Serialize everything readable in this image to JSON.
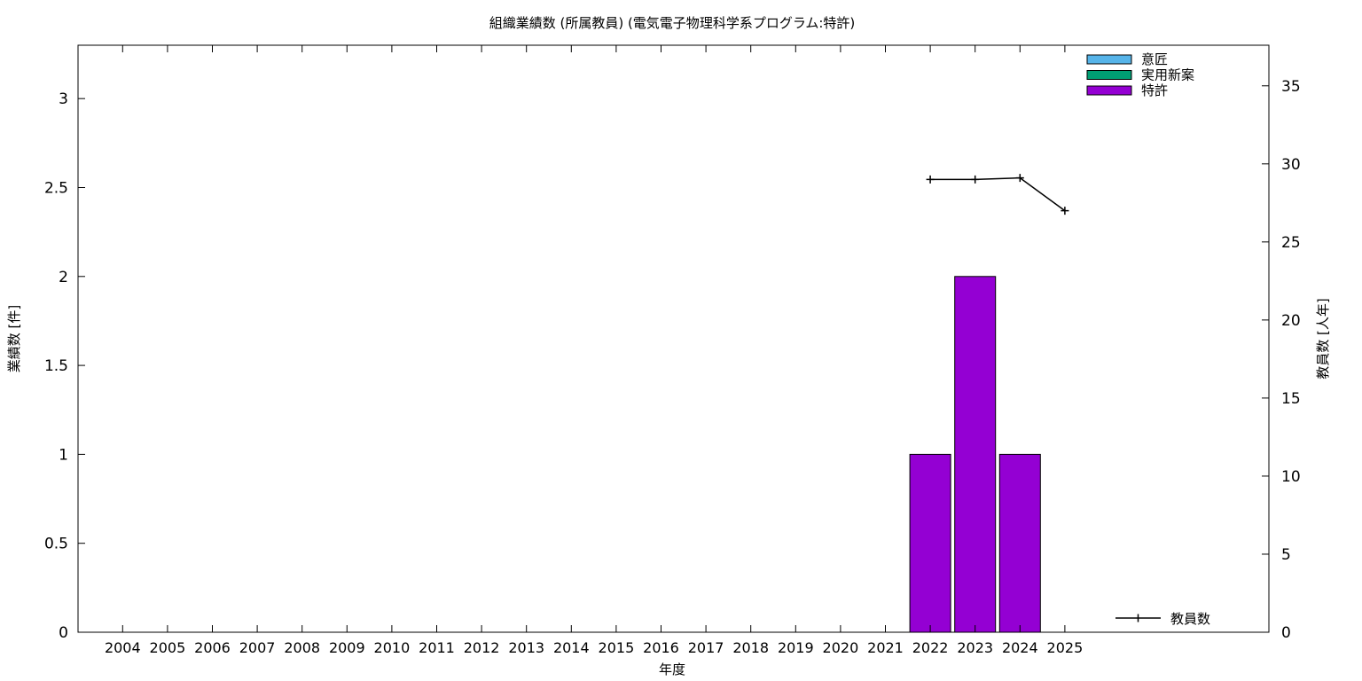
{
  "chart_data": {
    "type": "bar",
    "title": "組織業績数 (所属教員) (電気電子物理科学系プログラム:特許)",
    "xlabel": "年度",
    "ylabel": "業績数 [件]",
    "y2label": "教員数 [人年]",
    "categories": [
      "2004",
      "2005",
      "2006",
      "2007",
      "2008",
      "2009",
      "2010",
      "2011",
      "2012",
      "2013",
      "2014",
      "2015",
      "2016",
      "2017",
      "2018",
      "2019",
      "2020",
      "2021",
      "2022",
      "2023",
      "2024",
      "2025"
    ],
    "ylim": [
      0,
      3.3
    ],
    "y2lim": [
      0,
      37.6
    ],
    "yticks": [
      "0",
      "0.5",
      "1",
      "1.5",
      "2",
      "2.5",
      "3"
    ],
    "y2ticks": [
      "0",
      "5",
      "10",
      "15",
      "20",
      "25",
      "30",
      "35"
    ],
    "grid": false,
    "legend_position": "top-right",
    "series": [
      {
        "name": "意匠",
        "color": "#56b4e9",
        "values": [
          0,
          0,
          0,
          0,
          0,
          0,
          0,
          0,
          0,
          0,
          0,
          0,
          0,
          0,
          0,
          0,
          0,
          0,
          0,
          0,
          0,
          0
        ]
      },
      {
        "name": "実用新案",
        "color": "#009e73",
        "values": [
          0,
          0,
          0,
          0,
          0,
          0,
          0,
          0,
          0,
          0,
          0,
          0,
          0,
          0,
          0,
          0,
          0,
          0,
          0,
          0,
          0,
          0
        ]
      },
      {
        "name": "特許",
        "color": "#9400d3",
        "values": [
          0,
          0,
          0,
          0,
          0,
          0,
          0,
          0,
          0,
          0,
          0,
          0,
          0,
          0,
          0,
          0,
          0,
          0,
          1,
          2,
          1,
          0
        ]
      }
    ],
    "line_series": {
      "name": "教員数",
      "color": "#000000",
      "points": [
        {
          "x": "2022",
          "y": 29.0
        },
        {
          "x": "2023",
          "y": 29.0
        },
        {
          "x": "2024",
          "y": 29.1
        },
        {
          "x": "2025",
          "y": 27.0
        }
      ]
    }
  }
}
